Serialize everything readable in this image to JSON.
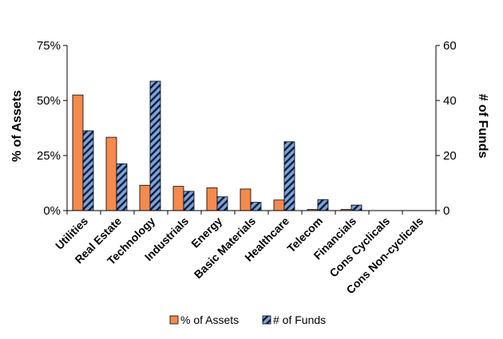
{
  "chart_data": {
    "type": "bar",
    "categories": [
      "Utilities",
      "Real Estate",
      "Technology",
      "Industrials",
      "Energy",
      "Basic Materials",
      "Healthcare",
      "Telecom",
      "Financials",
      "Cons Cyclicals",
      "Cons Non-cyclicals"
    ],
    "series": [
      {
        "name": "% of Assets",
        "axis": "left",
        "color": "#f58a4e",
        "values": [
          52.5,
          33.3,
          11.5,
          11.0,
          10.3,
          9.8,
          4.8,
          0.5,
          0.5,
          0,
          0
        ]
      },
      {
        "name": "# of Funds",
        "axis": "right",
        "color": "#7ba3d8",
        "pattern": "diagonal-hatch",
        "values": [
          29,
          17,
          47,
          7,
          5,
          3,
          25,
          4,
          2,
          0,
          0
        ]
      }
    ],
    "ylabel": "% of Assets",
    "y2label": "# of Funds",
    "ylim": [
      0,
      75
    ],
    "y2lim": [
      0,
      60
    ],
    "yticks": [
      "0%",
      "25%",
      "50%",
      "75%"
    ],
    "y2ticks": [
      "0",
      "20",
      "40",
      "60"
    ],
    "legend_position": "bottom",
    "grid": false
  }
}
